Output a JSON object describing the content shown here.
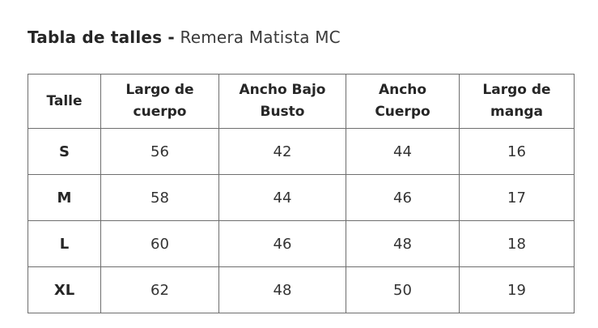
{
  "title": {
    "bold": "Tabla de talles -",
    "regular": "Remera Matista MC"
  },
  "table": {
    "headers": [
      [
        "Talle"
      ],
      [
        "Largo de",
        "cuerpo"
      ],
      [
        "Ancho Bajo",
        "Busto"
      ],
      [
        "Ancho",
        "Cuerpo"
      ],
      [
        "Largo de",
        "manga"
      ]
    ],
    "rows": [
      [
        "S",
        "56",
        "42",
        "44",
        "16"
      ],
      [
        "M",
        "58",
        "44",
        "46",
        "17"
      ],
      [
        "L",
        "60",
        "46",
        "48",
        "18"
      ],
      [
        "XL",
        "62",
        "48",
        "50",
        "19"
      ]
    ]
  }
}
